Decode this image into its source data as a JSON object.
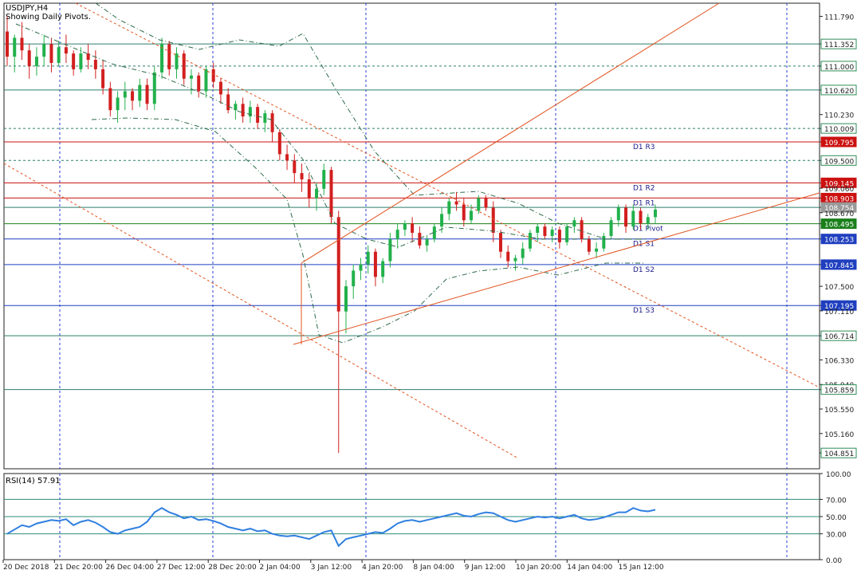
{
  "header": {
    "symbol_line": "USDJPY,H4",
    "subtitle": "Showing Daily Pivots."
  },
  "chart_data": {
    "type": "candlestick",
    "symbol": "USDJPY",
    "timeframe": "H4",
    "ylim": [
      104.6,
      112.0
    ],
    "price_ticks": [
      {
        "value": 111.79,
        "label": "111.790"
      },
      {
        "value": 111.352,
        "label": "111.352",
        "boxed": true,
        "color": "#2e8b57"
      },
      {
        "value": 111.0,
        "label": "111.000",
        "boxed": true,
        "color": "#2e8b57"
      },
      {
        "value": 110.62,
        "label": "110.620",
        "boxed": true,
        "color": "#2e8b57"
      },
      {
        "value": 110.23,
        "label": "110.230"
      },
      {
        "value": 110.009,
        "label": "110.009",
        "boxed": true,
        "color": "#2e8b57"
      },
      {
        "value": 109.795,
        "label": "109.795",
        "boxed": true,
        "color": "#cc1111",
        "filled": true
      },
      {
        "value": 109.5,
        "label": "109.500",
        "boxed": true,
        "color": "#2e8b57"
      },
      {
        "value": 109.145,
        "label": "109.145",
        "boxed": true,
        "color": "#cc1111",
        "filled": true
      },
      {
        "value": 109.06,
        "label": "109.060"
      },
      {
        "value": 108.903,
        "label": "108.903",
        "boxed": true,
        "color": "#cc1111",
        "filled": true
      },
      {
        "value": 108.754,
        "label": "108.754",
        "boxed": true,
        "color": "#999999",
        "filled": true
      },
      {
        "value": 108.67,
        "label": "108.670"
      },
      {
        "value": 108.495,
        "label": "108.495",
        "boxed": true,
        "color": "#1a7f1a",
        "filled": true
      },
      {
        "value": 108.253,
        "label": "108.253",
        "boxed": true,
        "color": "#1f3fbf",
        "filled": true
      },
      {
        "value": 107.845,
        "label": "107.845",
        "boxed": true,
        "color": "#1f3fbf",
        "filled": true
      },
      {
        "value": 107.5,
        "label": "107.500"
      },
      {
        "value": 107.195,
        "label": "107.195",
        "boxed": true,
        "color": "#1f3fbf",
        "filled": true
      },
      {
        "value": 107.11,
        "label": "107.110"
      },
      {
        "value": 106.714,
        "label": "106.714",
        "boxed": true,
        "color": "#2e8b57"
      },
      {
        "value": 106.33,
        "label": "106.330"
      },
      {
        "value": 105.94,
        "label": "105.940"
      },
      {
        "value": 105.859,
        "label": "105.859",
        "boxed": true,
        "color": "#2e8b57"
      },
      {
        "value": 105.55,
        "label": "105.550"
      },
      {
        "value": 105.16,
        "label": "105.160"
      },
      {
        "value": 104.851,
        "label": "104.851",
        "boxed": true,
        "color": "#2e8b57"
      }
    ],
    "pivots": [
      {
        "label": "D1 R3",
        "value": 109.795,
        "color": "#cc1111"
      },
      {
        "label": "D1 R2",
        "value": 109.145,
        "color": "#cc1111"
      },
      {
        "label": "D1 R1",
        "value": 108.903,
        "color": "#cc1111"
      },
      {
        "label": "D1 Pivot",
        "value": 108.495,
        "color": "#1a7f1a"
      },
      {
        "label": "D1 S1",
        "value": 108.253,
        "color": "#1f3fbf"
      },
      {
        "label": "D1 S2",
        "value": 107.845,
        "color": "#1f3fbf"
      },
      {
        "label": "D1 S3",
        "value": 107.195,
        "color": "#1f3fbf"
      }
    ],
    "horizontal_levels": [
      {
        "value": 111.352,
        "style": "solid"
      },
      {
        "value": 111.0,
        "style": "dashed"
      },
      {
        "value": 110.62,
        "style": "solid"
      },
      {
        "value": 110.009,
        "style": "dashed"
      },
      {
        "value": 109.5,
        "style": "dashed"
      },
      {
        "value": 108.754,
        "style": "solid"
      },
      {
        "value": 106.714,
        "style": "solid"
      },
      {
        "value": 105.859,
        "style": "solid"
      }
    ],
    "x_labels": [
      "20 Dec 2018",
      "21 Dec 20:00",
      "26 Dec 04:00",
      "27 Dec 12:00",
      "28 Dec 20:00",
      "2 Jan 04:00",
      "3 Jan 12:00",
      "4 Jan 20:00",
      "8 Jan 04:00",
      "9 Jan 12:00",
      "10 Jan 20:00",
      "14 Jan 04:00",
      "15 Jan 12:00"
    ],
    "candles": [
      [
        111.55,
        111.8,
        111.0,
        111.15
      ],
      [
        111.15,
        111.5,
        110.9,
        111.45
      ],
      [
        111.45,
        111.7,
        111.1,
        111.25
      ],
      [
        111.25,
        111.35,
        110.8,
        111.0
      ],
      [
        111.0,
        111.3,
        110.85,
        111.15
      ],
      [
        111.15,
        111.5,
        111.0,
        111.35
      ],
      [
        111.35,
        111.45,
        110.9,
        111.05
      ],
      [
        111.05,
        111.4,
        111.0,
        111.3
      ],
      [
        111.3,
        111.5,
        111.05,
        111.2
      ],
      [
        111.2,
        111.25,
        110.85,
        110.95
      ],
      [
        110.95,
        111.3,
        110.9,
        111.2
      ],
      [
        111.2,
        111.35,
        110.95,
        111.1
      ],
      [
        111.1,
        111.25,
        110.8,
        110.95
      ],
      [
        110.95,
        111.1,
        110.55,
        110.65
      ],
      [
        110.65,
        110.75,
        110.2,
        110.3
      ],
      [
        110.3,
        110.6,
        110.1,
        110.5
      ],
      [
        110.5,
        110.75,
        110.3,
        110.6
      ],
      [
        110.6,
        110.65,
        110.3,
        110.45
      ],
      [
        110.45,
        110.8,
        110.35,
        110.7
      ],
      [
        110.7,
        110.8,
        110.3,
        110.4
      ],
      [
        110.4,
        111.0,
        110.3,
        110.9
      ],
      [
        110.9,
        111.45,
        110.8,
        111.35
      ],
      [
        111.35,
        111.4,
        110.85,
        110.95
      ],
      [
        110.95,
        111.3,
        110.8,
        111.2
      ],
      [
        111.2,
        111.25,
        110.7,
        110.8
      ],
      [
        110.8,
        110.95,
        110.55,
        110.85
      ],
      [
        110.85,
        110.9,
        110.5,
        110.6
      ],
      [
        110.6,
        111.0,
        110.5,
        110.95
      ],
      [
        110.95,
        111.05,
        110.65,
        110.75
      ],
      [
        110.75,
        110.8,
        110.4,
        110.55
      ],
      [
        110.55,
        110.65,
        110.25,
        110.3
      ],
      [
        110.3,
        110.45,
        110.15,
        110.4
      ],
      [
        110.4,
        110.5,
        110.1,
        110.2
      ],
      [
        110.2,
        110.45,
        110.1,
        110.35
      ],
      [
        110.35,
        110.4,
        110.0,
        110.1
      ],
      [
        110.1,
        110.3,
        109.95,
        110.25
      ],
      [
        110.25,
        110.3,
        109.8,
        109.95
      ],
      [
        109.95,
        110.0,
        109.5,
        109.6
      ],
      [
        109.6,
        109.75,
        109.35,
        109.5
      ],
      [
        109.5,
        109.6,
        109.15,
        109.3
      ],
      [
        109.3,
        109.45,
        109.0,
        109.2
      ],
      [
        109.2,
        109.3,
        108.75,
        108.9
      ],
      [
        108.9,
        109.15,
        108.7,
        109.05
      ],
      [
        109.05,
        109.45,
        108.95,
        109.35
      ],
      [
        109.35,
        109.4,
        108.5,
        108.6
      ],
      [
        108.6,
        108.7,
        104.85,
        107.1
      ],
      [
        107.1,
        107.6,
        106.75,
        107.5
      ],
      [
        107.5,
        107.85,
        107.3,
        107.75
      ],
      [
        107.75,
        107.95,
        107.6,
        107.85
      ],
      [
        107.85,
        108.15,
        107.7,
        108.05
      ],
      [
        108.05,
        108.1,
        107.5,
        107.65
      ],
      [
        107.65,
        107.95,
        107.55,
        107.9
      ],
      [
        107.9,
        108.35,
        107.8,
        108.25
      ],
      [
        108.25,
        108.5,
        108.1,
        108.4
      ],
      [
        108.4,
        108.55,
        108.3,
        108.5
      ],
      [
        108.5,
        108.6,
        108.2,
        108.35
      ],
      [
        108.35,
        108.45,
        108.1,
        108.15
      ],
      [
        108.15,
        108.3,
        108.05,
        108.25
      ],
      [
        108.25,
        108.5,
        108.2,
        108.45
      ],
      [
        108.45,
        108.75,
        108.35,
        108.65
      ],
      [
        108.65,
        108.9,
        108.55,
        108.85
      ],
      [
        108.85,
        109.0,
        108.7,
        108.8
      ],
      [
        108.8,
        108.9,
        108.45,
        108.55
      ],
      [
        108.55,
        108.8,
        108.5,
        108.7
      ],
      [
        108.7,
        108.95,
        108.65,
        108.9
      ],
      [
        108.9,
        108.95,
        108.7,
        108.75
      ],
      [
        108.75,
        108.85,
        108.2,
        108.35
      ],
      [
        108.35,
        108.4,
        107.95,
        108.05
      ],
      [
        108.05,
        108.15,
        107.8,
        107.9
      ],
      [
        107.9,
        108.0,
        107.75,
        107.95
      ],
      [
        107.95,
        108.2,
        107.85,
        108.1
      ],
      [
        108.1,
        108.4,
        108.05,
        108.35
      ],
      [
        108.35,
        108.5,
        108.2,
        108.45
      ],
      [
        108.45,
        108.5,
        108.25,
        108.3
      ],
      [
        108.3,
        108.45,
        108.2,
        108.4
      ],
      [
        108.4,
        108.45,
        108.1,
        108.2
      ],
      [
        108.2,
        108.5,
        108.15,
        108.45
      ],
      [
        108.45,
        108.6,
        108.35,
        108.55
      ],
      [
        108.55,
        108.6,
        108.2,
        108.25
      ],
      [
        108.25,
        108.3,
        108.0,
        108.05
      ],
      [
        108.05,
        108.2,
        107.95,
        108.1
      ],
      [
        108.1,
        108.35,
        108.05,
        108.3
      ],
      [
        108.3,
        108.6,
        108.25,
        108.55
      ],
      [
        108.55,
        108.8,
        108.45,
        108.75
      ],
      [
        108.75,
        108.8,
        108.35,
        108.45
      ],
      [
        108.45,
        108.8,
        108.4,
        108.7
      ],
      [
        108.7,
        108.75,
        108.4,
        108.5
      ],
      [
        108.5,
        108.65,
        108.4,
        108.6
      ],
      [
        108.6,
        108.8,
        108.5,
        108.72
      ]
    ],
    "rsi": {
      "label": "RSI(14) 57.91",
      "ylim": [
        0,
        100
      ],
      "levels": [
        70,
        50,
        30
      ],
      "tick_labels": [
        "100.00",
        "70.00",
        "50.00",
        "30.00",
        "0.00"
      ],
      "values": [
        30,
        35,
        40,
        38,
        42,
        44,
        46,
        45,
        47,
        40,
        44,
        46,
        43,
        38,
        32,
        30,
        34,
        36,
        38,
        44,
        55,
        60,
        55,
        52,
        48,
        50,
        46,
        47,
        45,
        42,
        38,
        36,
        34,
        36,
        33,
        34,
        30,
        28,
        27,
        28,
        26,
        24,
        28,
        32,
        34,
        16,
        24,
        26,
        28,
        30,
        32,
        31,
        36,
        42,
        45,
        46,
        44,
        46,
        48,
        50,
        52,
        54,
        51,
        50,
        53,
        55,
        54,
        50,
        46,
        44,
        46,
        48,
        50,
        49,
        50,
        48,
        50,
        52,
        48,
        46,
        47,
        49,
        52,
        55,
        55,
        60,
        57,
        56,
        58
      ]
    }
  }
}
